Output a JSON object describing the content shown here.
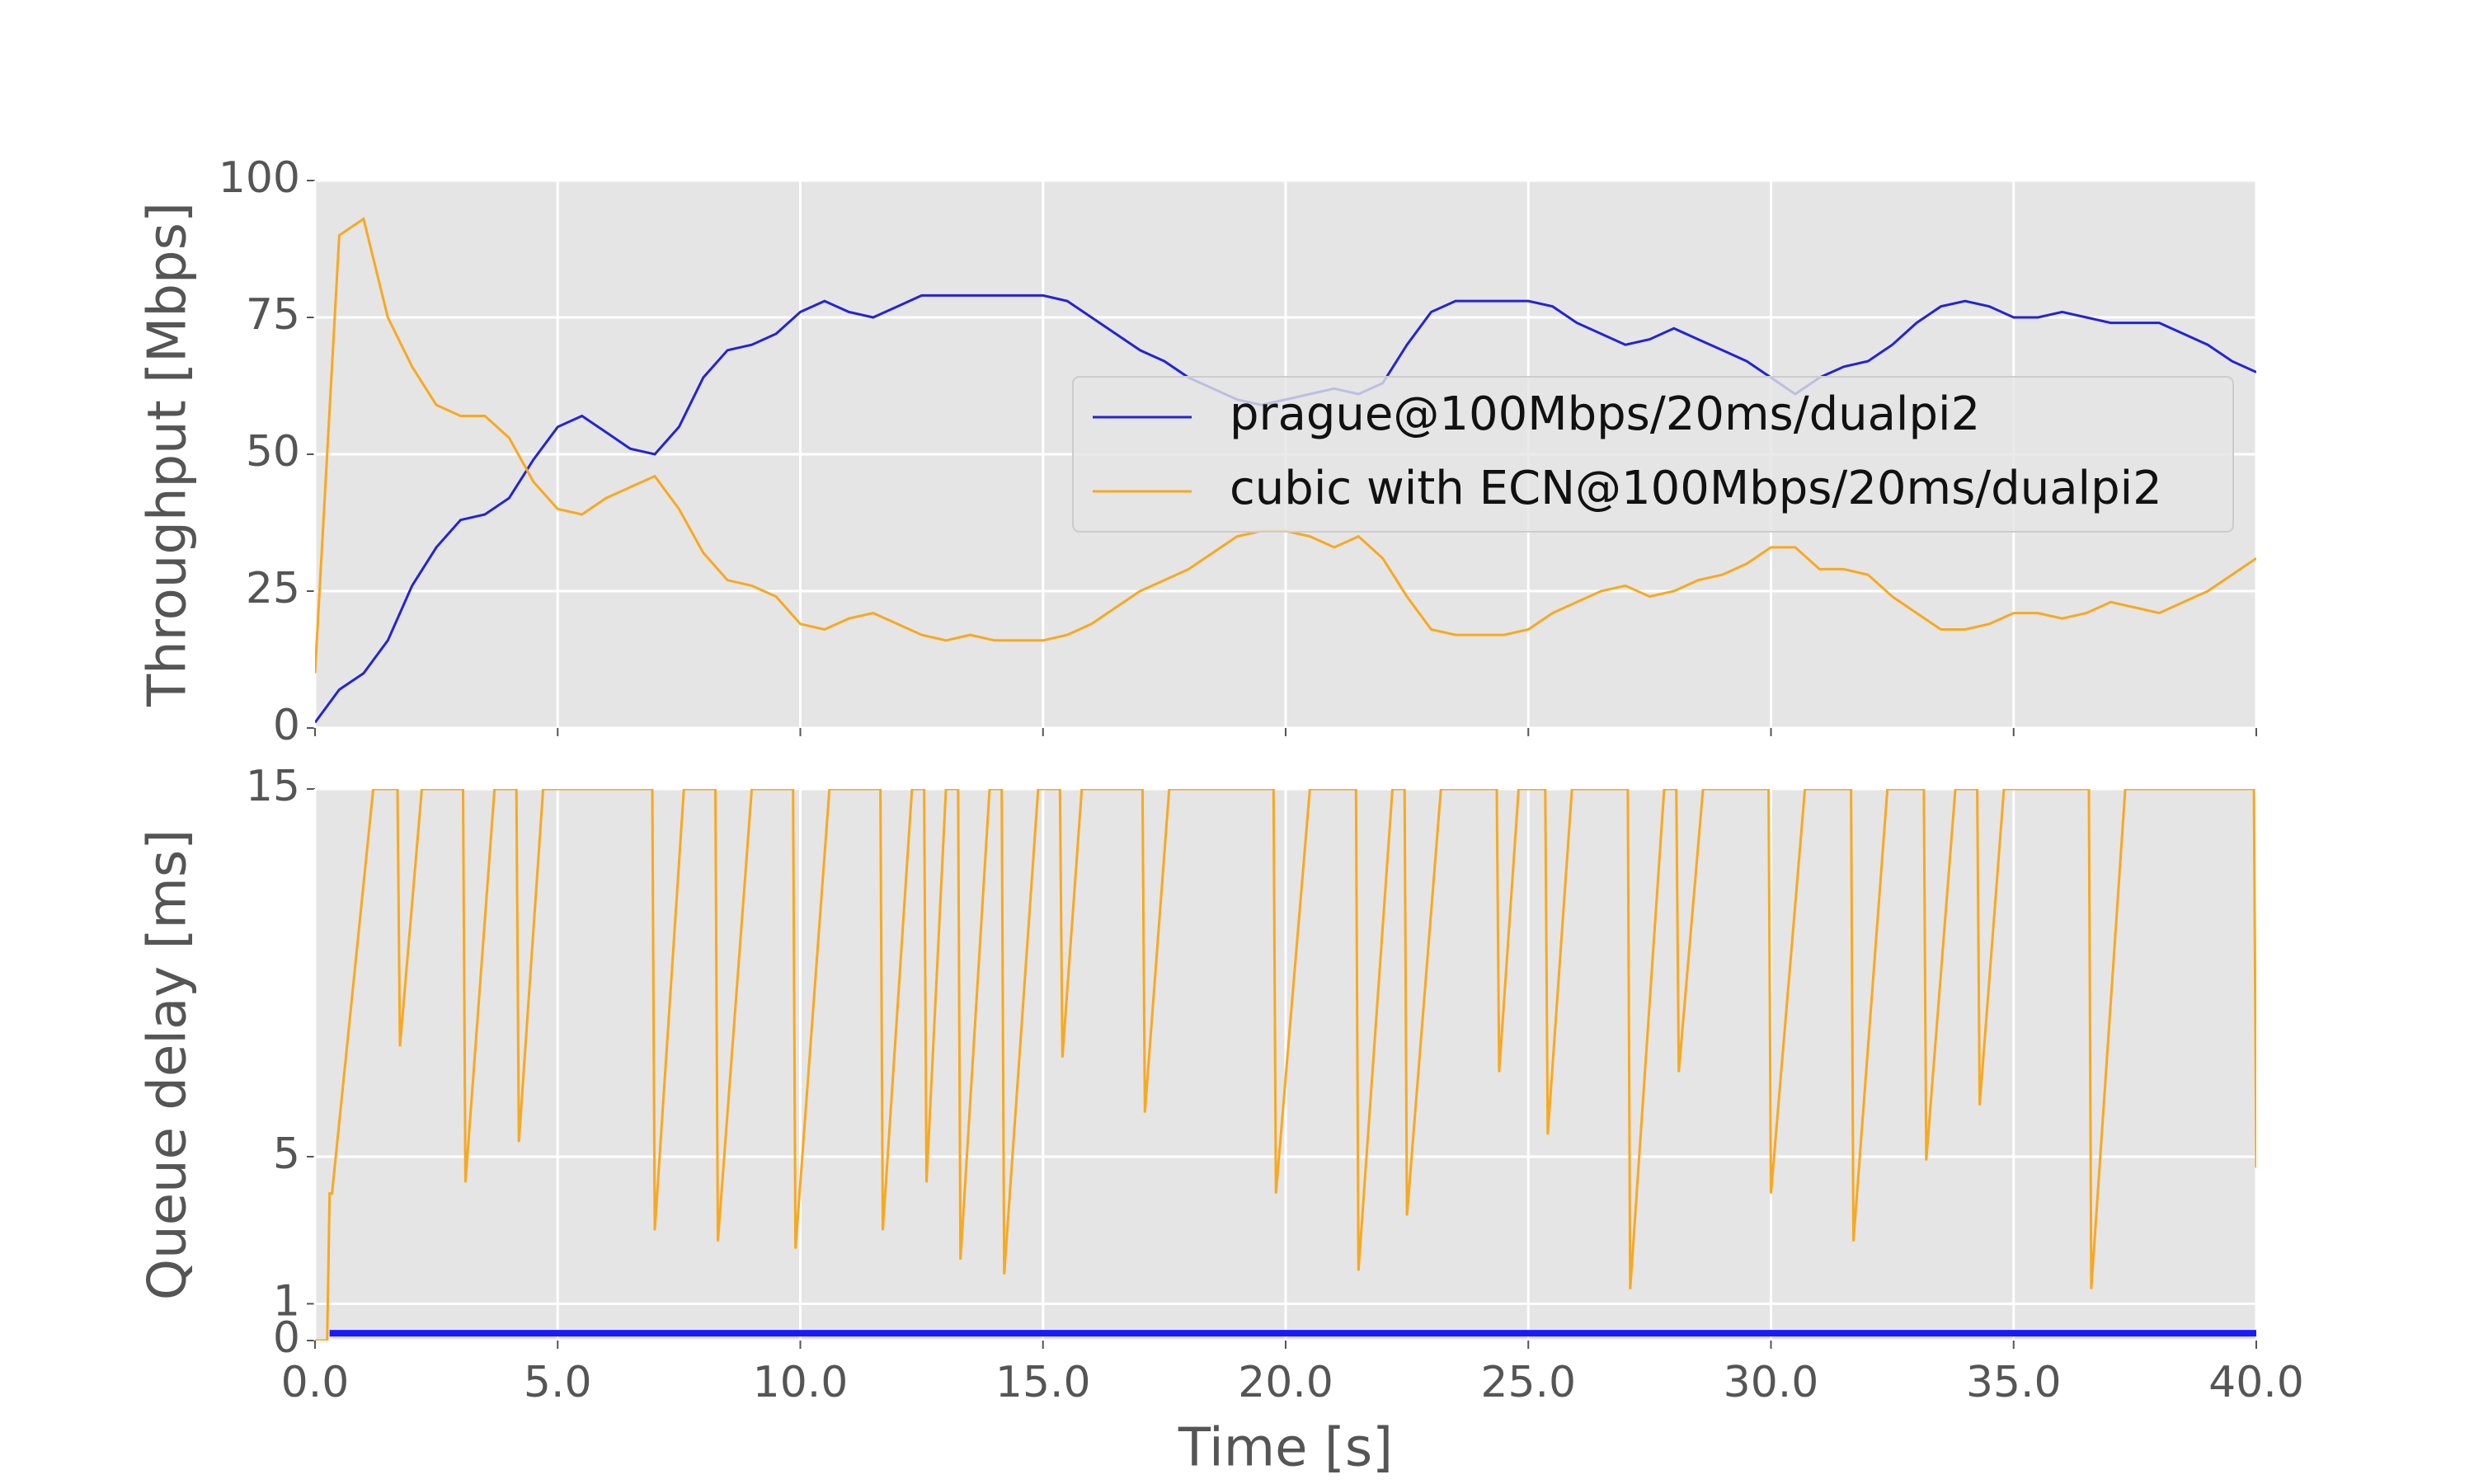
{
  "chart_data": [
    {
      "type": "line",
      "ylabel": "Throughput [Mbps]",
      "x": [
        0,
        0.5,
        1,
        1.5,
        2,
        2.5,
        3,
        3.5,
        4,
        4.5,
        5,
        5.5,
        6,
        6.5,
        7,
        7.5,
        8,
        8.5,
        9,
        9.5,
        10,
        10.5,
        11,
        11.5,
        12,
        12.5,
        13,
        13.5,
        14,
        14.5,
        15,
        15.5,
        16,
        16.5,
        17,
        17.5,
        18,
        18.5,
        19,
        19.5,
        20,
        20.5,
        21,
        21.5,
        22,
        22.5,
        23,
        23.5,
        24,
        24.5,
        25,
        25.5,
        26,
        26.5,
        27,
        27.5,
        28,
        28.5,
        29,
        29.5,
        30,
        30.5,
        31,
        31.5,
        32,
        32.5,
        33,
        33.5,
        34,
        34.5,
        35,
        35.5,
        36,
        36.5,
        37,
        37.5,
        38,
        38.5,
        39,
        39.5,
        40
      ],
      "series": [
        {
          "name": "prague@100Mbps/20ms/dualpi2",
          "color": "#2323d8",
          "values": [
            1,
            7,
            10,
            16,
            26,
            33,
            38,
            39,
            42,
            49,
            55,
            57,
            54,
            51,
            50,
            55,
            64,
            69,
            70,
            72,
            76,
            78,
            76,
            75,
            77,
            79,
            79,
            79,
            79,
            79,
            79,
            78,
            75,
            72,
            69,
            67,
            64,
            62,
            60,
            59,
            60,
            61,
            62,
            61,
            63,
            70,
            76,
            78,
            78,
            78,
            78,
            77,
            74,
            72,
            70,
            71,
            73,
            71,
            69,
            67,
            64,
            61,
            64,
            66,
            67,
            70,
            74,
            77,
            78,
            77,
            75,
            75,
            76,
            75,
            74,
            74,
            74,
            72,
            70,
            67,
            65
          ]
        },
        {
          "name": "cubic with ECN@100Mbps/20ms/dualpi2",
          "color": "#f9a81f",
          "values": [
            10,
            90,
            93,
            75,
            66,
            59,
            57,
            57,
            53,
            45,
            40,
            39,
            42,
            44,
            46,
            40,
            32,
            27,
            26,
            24,
            19,
            18,
            20,
            21,
            19,
            17,
            16,
            17,
            16,
            16,
            16,
            17,
            19,
            22,
            25,
            27,
            29,
            32,
            35,
            36,
            36,
            35,
            33,
            35,
            31,
            24,
            18,
            17,
            17,
            17,
            18,
            21,
            23,
            25,
            26,
            24,
            25,
            27,
            28,
            30,
            33,
            33,
            29,
            29,
            28,
            24,
            21,
            18,
            18,
            19,
            21,
            21,
            20,
            21,
            23,
            22,
            21,
            23,
            25,
            28,
            31
          ]
        }
      ],
      "xlim": [
        0,
        40
      ],
      "xticks": [
        0,
        5,
        10,
        15,
        20,
        25,
        30,
        35,
        40
      ],
      "ylim": [
        0,
        100
      ],
      "yticks": [
        0,
        25,
        50,
        75,
        100
      ],
      "grid": true,
      "legend": "center right"
    },
    {
      "type": "line",
      "xlabel": "Time [s]",
      "ylabel": "Queue delay [ms]",
      "series": [
        {
          "color": "#f9a81f",
          "x": [
            0,
            0.25,
            0.3,
            0.35,
            1.2,
            1.7,
            1.75,
            2.2,
            3.05,
            3.1,
            3.7,
            4.15,
            4.2,
            4.7,
            6.95,
            7.0,
            7.6,
            8.25,
            8.3,
            9.0,
            9.85,
            9.9,
            10.6,
            11.65,
            11.7,
            12.3,
            12.55,
            12.6,
            13.0,
            13.25,
            13.3,
            13.9,
            14.15,
            14.2,
            14.9,
            15.35,
            15.4,
            15.8,
            17.05,
            17.1,
            17.6,
            19.75,
            19.8,
            20.5,
            21.45,
            21.5,
            22.2,
            22.45,
            22.5,
            23.2,
            24.35,
            24.4,
            24.8,
            25.35,
            25.4,
            25.9,
            27.05,
            27.1,
            27.8,
            28.05,
            28.1,
            28.6,
            29.95,
            30.0,
            30.7,
            31.65,
            31.7,
            32.4,
            33.15,
            33.2,
            33.8,
            34.25,
            34.3,
            34.8,
            36.55,
            36.6,
            37.3,
            39.95,
            40.0
          ],
          "values": [
            0,
            0,
            4,
            4,
            15,
            15,
            8,
            15,
            15,
            4.3,
            15,
            15,
            5.4,
            15,
            15,
            3,
            15,
            15,
            2.7,
            15,
            15,
            2.5,
            15,
            15,
            3,
            15,
            15,
            4.3,
            15,
            15,
            2.2,
            15,
            15,
            1.8,
            15,
            15,
            7.7,
            15,
            15,
            6.2,
            15,
            15,
            4,
            15,
            15,
            1.9,
            15,
            15,
            3.4,
            15,
            15,
            7.3,
            15,
            15,
            5.6,
            15,
            15,
            1.4,
            15,
            15,
            7.3,
            15,
            15,
            4,
            15,
            15,
            2.7,
            15,
            15,
            4.9,
            15,
            15,
            6.4,
            15,
            15,
            1.4,
            15,
            15,
            4.7
          ]
        },
        {
          "color": "#1a1aff",
          "x": [
            0.3,
            40
          ],
          "values": [
            0.2,
            0.2
          ]
        }
      ],
      "xlim": [
        0,
        40
      ],
      "xticks": [
        {
          "value": 0,
          "label": "0.0"
        },
        {
          "value": 5,
          "label": "5.0"
        },
        {
          "value": 10,
          "label": "10.0"
        },
        {
          "value": 15,
          "label": "15.0"
        },
        {
          "value": 20,
          "label": "20.0"
        },
        {
          "value": 25,
          "label": "25.0"
        },
        {
          "value": 30,
          "label": "30.0"
        },
        {
          "value": 35,
          "label": "35.0"
        },
        {
          "value": 40,
          "label": "40.0"
        }
      ],
      "ylim": [
        0,
        15
      ],
      "yticks": [
        0,
        1,
        5,
        15
      ],
      "grid": true
    }
  ]
}
